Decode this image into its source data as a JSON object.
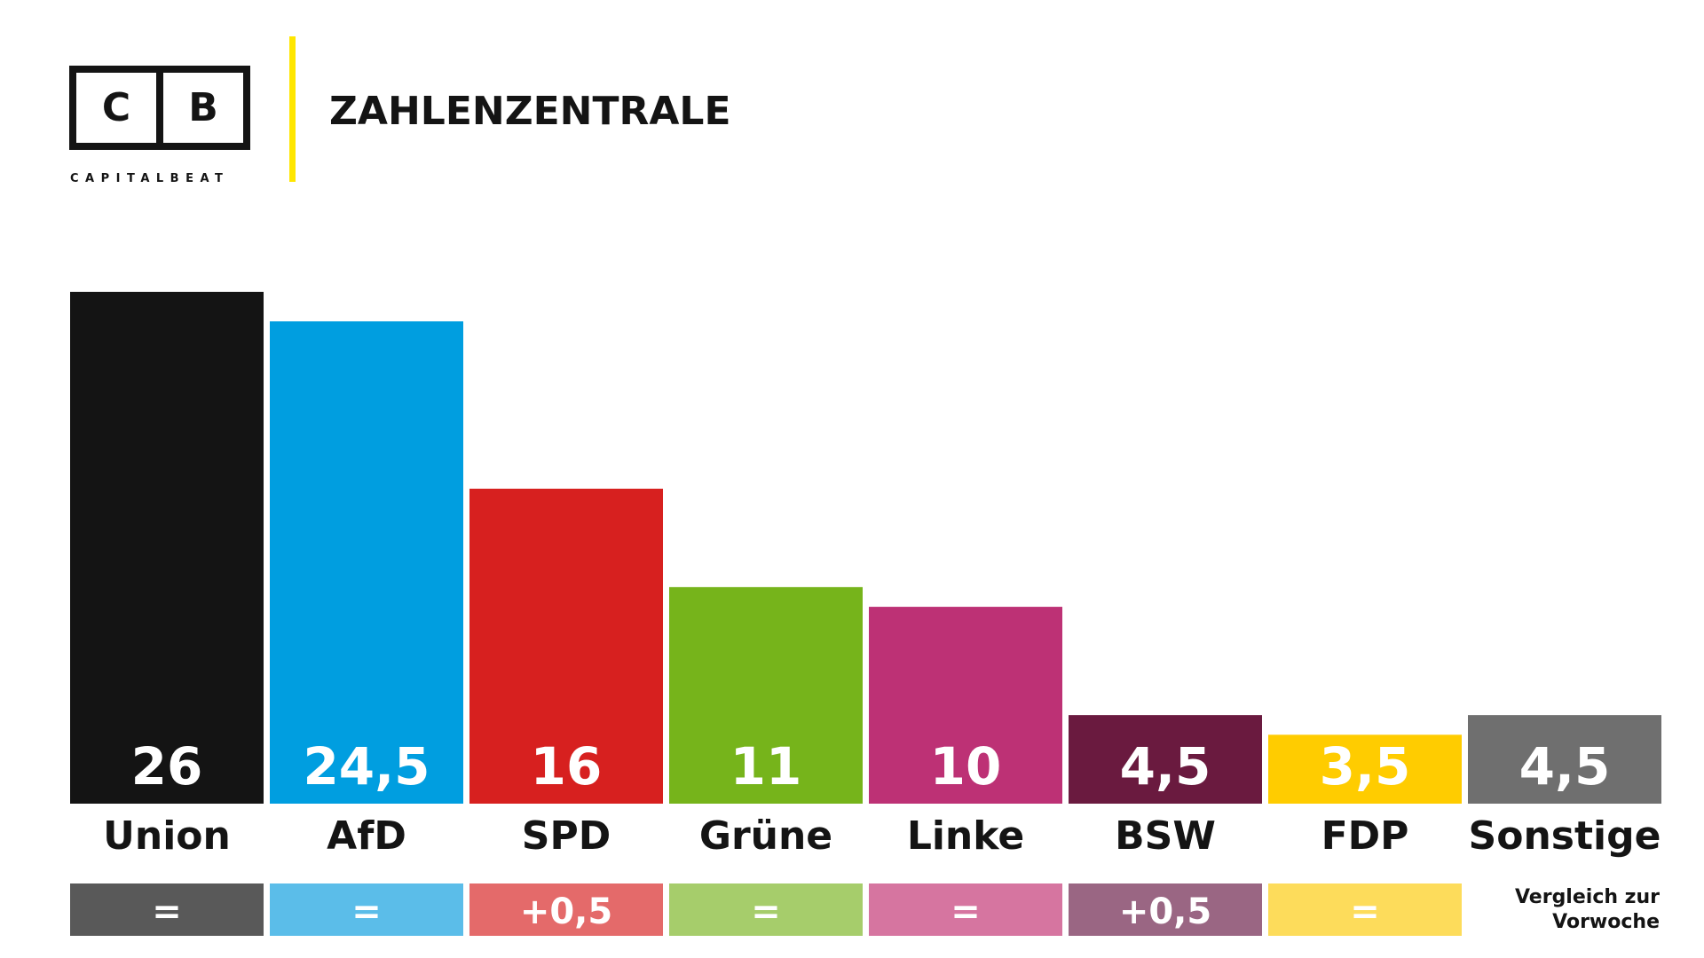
{
  "logo": {
    "left": "C",
    "right": "B",
    "name": "CAPITALBEAT"
  },
  "chart_data": {
    "type": "bar",
    "title": "ZAHLENZENTRALE",
    "categories": [
      "Union",
      "AfD",
      "SPD",
      "Grüne",
      "Linke",
      "BSW",
      "FDP",
      "Sonstige"
    ],
    "values": [
      26,
      24.5,
      16,
      11,
      10,
      4.5,
      3.5,
      4.5
    ],
    "value_labels": [
      "26",
      "24,5",
      "16",
      "11",
      "10",
      "4,5",
      "3,5",
      "4,5"
    ],
    "colors": [
      "#141414",
      "#009ee0",
      "#d7201f",
      "#76b41b",
      "#bd3175",
      "#6a1a3f",
      "#ffcc00",
      "#6f6f6f"
    ],
    "changes": [
      "=",
      "=",
      "+0,5",
      "=",
      "=",
      "+0,5",
      "=",
      null
    ],
    "change_colors": [
      "#595959",
      "#5bbde9",
      "#e46a6a",
      "#a6cd6b",
      "#d675a0",
      "#9a6683",
      "#fddc5b",
      null
    ],
    "change_note": [
      "Vergleich zur",
      "Vorwoche"
    ]
  }
}
